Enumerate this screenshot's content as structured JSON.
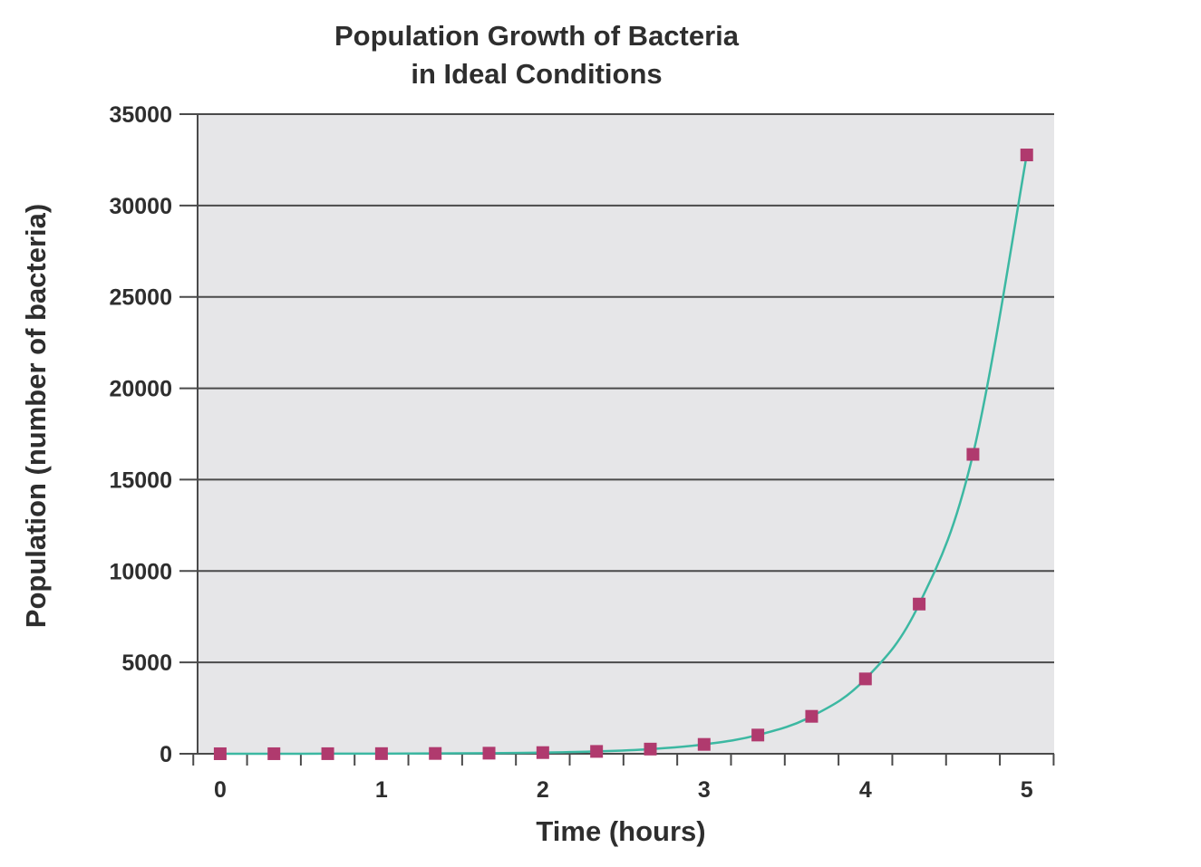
{
  "chart_data": {
    "type": "line",
    "title": [
      "Population Growth of Bacteria",
      "in Ideal Conditions"
    ],
    "xlabel": "Time (hours)",
    "ylabel": "Population (number of bacteria)",
    "xlim": [
      -0.14,
      5.17
    ],
    "ylim": [
      0,
      35000
    ],
    "x_ticks": [
      0,
      1,
      2,
      3,
      4,
      5
    ],
    "x_tick_labels": [
      "0",
      "1",
      "2",
      "3",
      "4",
      "5"
    ],
    "x_minor_ticks": [
      -0.1667,
      0.1667,
      0.5,
      0.8333,
      1.1667,
      1.5,
      1.8333,
      2.1667,
      2.5,
      2.8333,
      3.1667,
      3.5,
      3.8333,
      4.1667,
      4.5,
      4.8333,
      5.1667
    ],
    "y_ticks": [
      0,
      5000,
      10000,
      15000,
      20000,
      25000,
      30000,
      35000
    ],
    "y_tick_labels": [
      "0",
      "5000",
      "10000",
      "15000",
      "20000",
      "25000",
      "30000",
      "35000"
    ],
    "grid": "horizontal",
    "legend": "none",
    "series": [
      {
        "x": [
          0,
          0.3333,
          0.6667,
          1,
          1.3333,
          1.6667,
          2,
          2.3333,
          2.6667,
          3,
          3.3333,
          3.6667,
          4,
          4.3333,
          4.6667,
          5
        ],
        "y": [
          1,
          2,
          4,
          8,
          16,
          32,
          64,
          128,
          256,
          512,
          1024,
          2048,
          4096,
          8192,
          16384,
          32768
        ],
        "line_color": "#3cb8a2",
        "marker_color": "#b03a6e",
        "marker": "square"
      }
    ],
    "colors": {
      "plot_background": "#e6e6e8",
      "gridline": "#4a4a4a",
      "text": "#2e2e2e"
    }
  }
}
